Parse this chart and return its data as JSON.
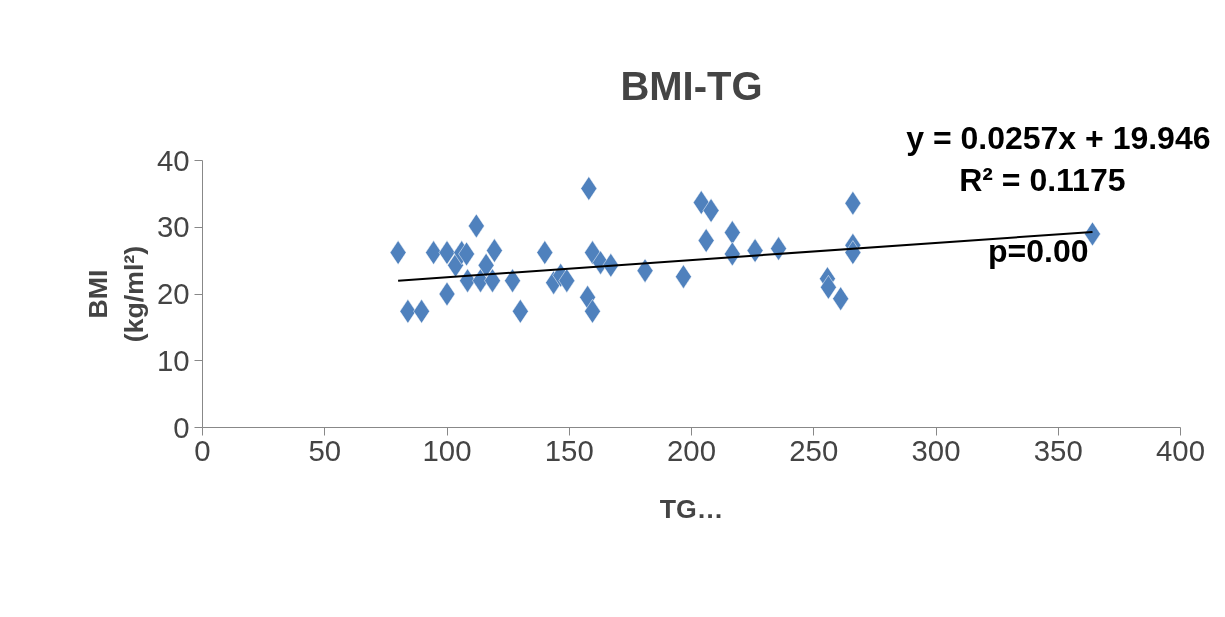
{
  "chart_data": {
    "type": "scatter",
    "title": "BMI-TG",
    "xlabel": "TG…",
    "ylabel": "BMI (kg/ml²)",
    "annotations": [
      "y = 0.0257x + 19.946",
      "R² = 0.1175",
      "p=0.00"
    ],
    "xlim": [
      0,
      400
    ],
    "ylim": [
      0,
      40
    ],
    "xticks": [
      0,
      50,
      100,
      150,
      200,
      250,
      300,
      350,
      400
    ],
    "yticks": [
      0,
      10,
      20,
      30,
      40
    ],
    "grid": false,
    "series": [
      {
        "type": "scatter",
        "marker": "diamond",
        "color": "#4f81bd",
        "x": [
          80,
          84,
          89.6,
          94.5,
          100,
          100,
          103.5,
          106,
          108,
          108.4,
          112,
          113.7,
          116,
          118.6,
          119.4,
          126.8,
          130,
          140,
          143.6,
          146.5,
          149,
          158,
          157.5,
          159.5,
          159.5,
          162.8,
          167,
          181,
          196.7,
          204,
          208,
          206,
          216.7,
          216.7,
          226,
          235.6,
          255.6,
          256,
          261,
          266,
          266,
          266,
          364
        ],
        "values": [
          26.2,
          17.4,
          17.4,
          26.2,
          26.2,
          20,
          24.3,
          26.2,
          26,
          22,
          30.2,
          22,
          24.3,
          22,
          26.5,
          22,
          17.4,
          26.2,
          21.7,
          22.8,
          22,
          35.8,
          19.5,
          17.4,
          26.2,
          24.7,
          24.3,
          23.5,
          22.6,
          33.7,
          32.5,
          28,
          29.2,
          26,
          26.5,
          26.8,
          22.3,
          21,
          19.3,
          33.6,
          27.3,
          26.2,
          29
        ]
      },
      {
        "type": "line",
        "marker": "none",
        "color": "#000000",
        "line_style": "solid",
        "x": [
          80,
          364
        ],
        "values": [
          22.0,
          29.3
        ]
      }
    ]
  }
}
